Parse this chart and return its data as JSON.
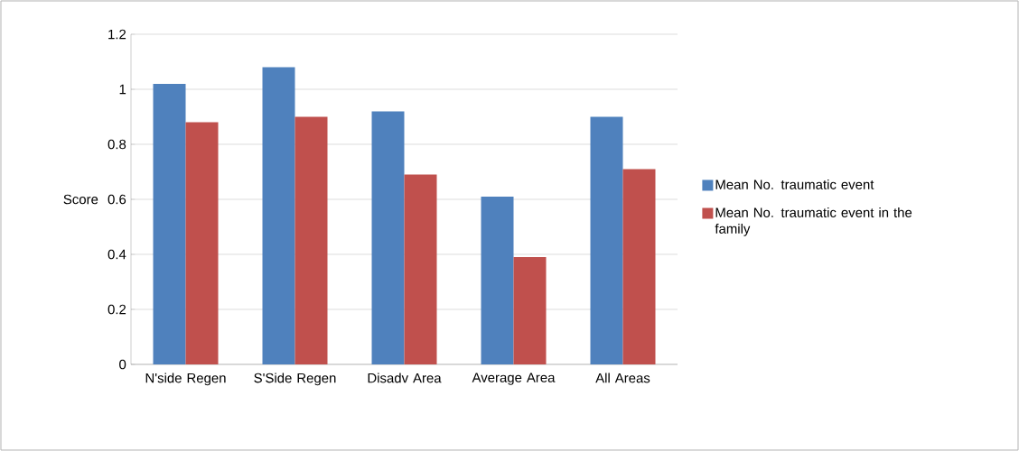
{
  "chart_data": {
    "type": "bar",
    "ylabel": "Score",
    "categories": [
      "N'side Regen",
      "S'Side Regen",
      "Disadv Area",
      "Average Area",
      "All Areas"
    ],
    "series": [
      {
        "name": "Mean No.   traumatic event",
        "color": "#4f81bd",
        "values": [
          1.02,
          1.08,
          0.92,
          0.61,
          0.9
        ]
      },
      {
        "name": "Mean No. traumatic event in the family",
        "color": "#c0504d",
        "values": [
          0.88,
          0.9,
          0.69,
          0.39,
          0.71
        ]
      }
    ],
    "ylim": [
      0,
      1.2
    ],
    "yticks": [
      0,
      0.2,
      0.4,
      0.6,
      0.8,
      1,
      1.2
    ],
    "grid": "y",
    "legend": "right"
  }
}
